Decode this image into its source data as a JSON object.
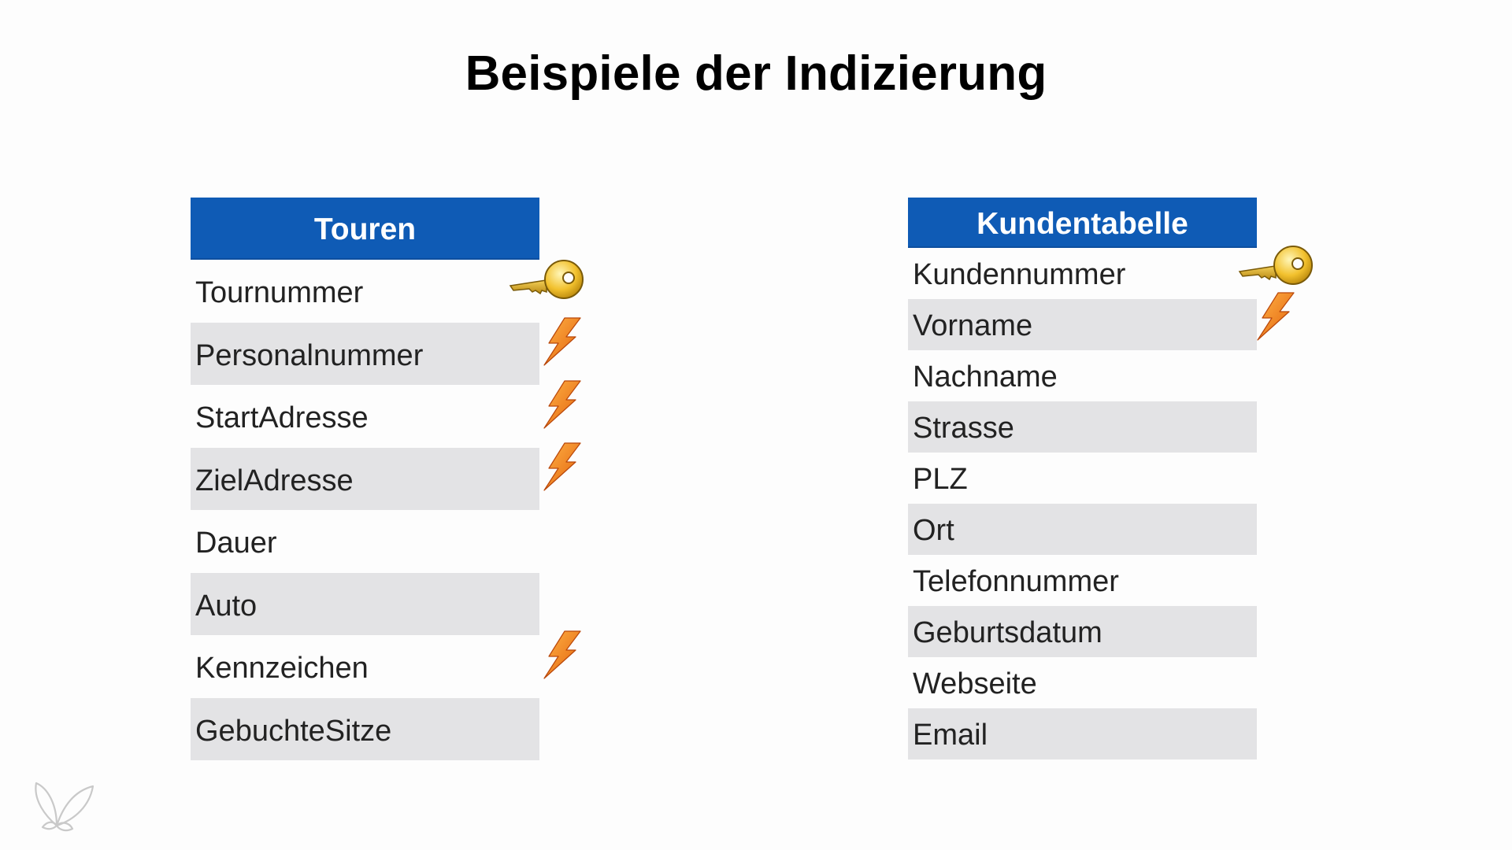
{
  "slide": {
    "title": "Beispiele der Indizierung"
  },
  "tables": {
    "touren": {
      "header": "Touren",
      "rows": [
        {
          "label": "Tournummer",
          "shaded": false,
          "marker": "key"
        },
        {
          "label": "Personalnummer",
          "shaded": true,
          "marker": "bolt"
        },
        {
          "label": "StartAdresse",
          "shaded": false,
          "marker": "bolt"
        },
        {
          "label": "ZielAdresse",
          "shaded": true,
          "marker": "bolt"
        },
        {
          "label": "Dauer",
          "shaded": false,
          "marker": ""
        },
        {
          "label": "Auto",
          "shaded": true,
          "marker": ""
        },
        {
          "label": "Kennzeichen",
          "shaded": false,
          "marker": "bolt"
        },
        {
          "label": "GebuchteSitze",
          "shaded": true,
          "marker": ""
        }
      ]
    },
    "kunden": {
      "header": "Kundentabelle",
      "rows": [
        {
          "label": "Kundennummer",
          "shaded": false,
          "marker": "key"
        },
        {
          "label": "Vorname",
          "shaded": true,
          "marker": "bolt"
        },
        {
          "label": "Nachname",
          "shaded": false,
          "marker": ""
        },
        {
          "label": "Strasse",
          "shaded": true,
          "marker": ""
        },
        {
          "label": "PLZ",
          "shaded": false,
          "marker": ""
        },
        {
          "label": "Ort",
          "shaded": true,
          "marker": ""
        },
        {
          "label": "Telefonnummer",
          "shaded": false,
          "marker": ""
        },
        {
          "label": "Geburtsdatum",
          "shaded": true,
          "marker": ""
        },
        {
          "label": "Webseite",
          "shaded": false,
          "marker": ""
        },
        {
          "label": "Email",
          "shaded": true,
          "marker": ""
        }
      ]
    }
  },
  "icons": {
    "primary_key": "key-icon",
    "index": "lightning-bolt-icon",
    "watermark": "butterfly-logo-icon"
  },
  "colors": {
    "header_bg": "#0f5bb5",
    "header_text": "#ffffff",
    "row_shade": "#e3e3e5",
    "key_gold": "#f2c12e",
    "bolt_orange": "#f07a12"
  }
}
